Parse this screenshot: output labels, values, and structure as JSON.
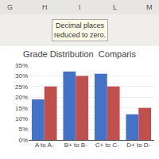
{
  "chart_data": {
    "type": "bar",
    "title": "Grade Distribution  Comparis",
    "categories": [
      "A to A-",
      "B+ to B-",
      "C+ to C-",
      "D+ to D-"
    ],
    "series": [
      {
        "color": "#4472C4",
        "values": [
          19,
          32,
          31,
          12
        ]
      },
      {
        "color": "#C0504D",
        "values": [
          25,
          30,
          25,
          15
        ]
      }
    ],
    "ylim": [
      0,
      35
    ],
    "yticks": [
      {
        "value": 0,
        "label": "0%"
      },
      {
        "value": 5,
        "label": "5%"
      },
      {
        "value": 10,
        "label": "10%"
      },
      {
        "value": 15,
        "label": "15%"
      },
      {
        "value": 20,
        "label": "20%"
      },
      {
        "value": 25,
        "label": "25%"
      },
      {
        "value": 30,
        "label": "30%"
      },
      {
        "value": 35,
        "label": "35%"
      }
    ],
    "grid": true,
    "annotations": [
      "G",
      "H",
      "I",
      "L",
      "M",
      "Decimal places\nreduced to zero."
    ]
  }
}
